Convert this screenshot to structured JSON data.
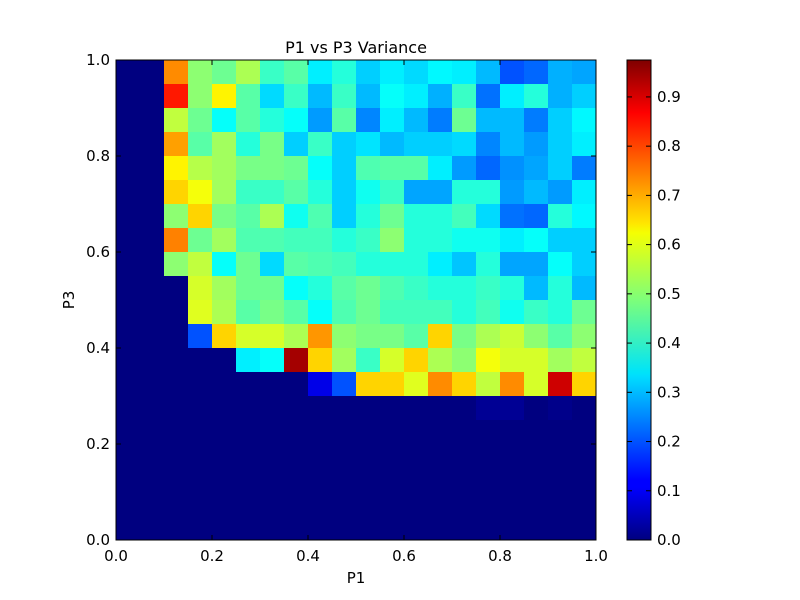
{
  "chart_data": {
    "type": "heatmap",
    "title": "P1 vs P3 Variance",
    "xlabel": "P1",
    "ylabel": "P3",
    "xlim": [
      0.0,
      1.0
    ],
    "ylim": [
      0.0,
      1.0
    ],
    "x_ticks": [
      "0.0",
      "0.2",
      "0.4",
      "0.6",
      "0.8",
      "1.0"
    ],
    "y_ticks": [
      "0.0",
      "0.2",
      "0.4",
      "0.6",
      "0.8",
      "1.0"
    ],
    "colorbar": {
      "min": 0.0,
      "max": 0.975,
      "colormap": "jet",
      "ticks": [
        "0.0",
        "0.1",
        "0.2",
        "0.3",
        "0.4",
        "0.5",
        "0.6",
        "0.7",
        "0.8",
        "0.9"
      ]
    },
    "grid_note": "20 columns x 20 rows; row 0 is the top (P3 near 1.0), column 0 is the left (P1 near 0.0)",
    "values": [
      [
        0.0,
        0.0,
        0.72,
        0.5,
        0.47,
        0.53,
        0.42,
        0.45,
        0.35,
        0.4,
        0.32,
        0.35,
        0.33,
        0.36,
        0.35,
        0.3,
        0.2,
        0.22,
        0.29,
        0.28
      ],
      [
        0.0,
        0.0,
        0.83,
        0.5,
        0.62,
        0.45,
        0.33,
        0.42,
        0.3,
        0.42,
        0.3,
        0.37,
        0.35,
        0.29,
        0.42,
        0.23,
        0.35,
        0.4,
        0.29,
        0.32
      ],
      [
        0.0,
        0.0,
        0.55,
        0.47,
        0.37,
        0.45,
        0.4,
        0.37,
        0.27,
        0.45,
        0.25,
        0.35,
        0.3,
        0.24,
        0.47,
        0.3,
        0.3,
        0.24,
        0.32,
        0.36
      ],
      [
        0.0,
        0.0,
        0.7,
        0.45,
        0.52,
        0.4,
        0.48,
        0.32,
        0.42,
        0.32,
        0.34,
        0.3,
        0.32,
        0.32,
        0.33,
        0.25,
        0.3,
        0.27,
        0.32,
        0.35
      ],
      [
        0.0,
        0.0,
        0.62,
        0.54,
        0.52,
        0.48,
        0.48,
        0.47,
        0.37,
        0.32,
        0.44,
        0.45,
        0.45,
        0.35,
        0.27,
        0.22,
        0.26,
        0.28,
        0.32,
        0.24
      ],
      [
        0.0,
        0.0,
        0.65,
        0.6,
        0.52,
        0.42,
        0.42,
        0.45,
        0.4,
        0.32,
        0.38,
        0.42,
        0.28,
        0.28,
        0.4,
        0.4,
        0.27,
        0.3,
        0.27,
        0.35
      ],
      [
        0.0,
        0.0,
        0.5,
        0.65,
        0.48,
        0.45,
        0.53,
        0.38,
        0.44,
        0.32,
        0.4,
        0.47,
        0.4,
        0.4,
        0.43,
        0.33,
        0.23,
        0.22,
        0.4,
        0.36
      ],
      [
        0.0,
        0.0,
        0.73,
        0.47,
        0.52,
        0.44,
        0.44,
        0.43,
        0.43,
        0.4,
        0.42,
        0.5,
        0.4,
        0.4,
        0.38,
        0.38,
        0.35,
        0.37,
        0.32,
        0.32
      ],
      [
        0.0,
        0.0,
        0.5,
        0.55,
        0.37,
        0.47,
        0.33,
        0.45,
        0.44,
        0.43,
        0.4,
        0.4,
        0.4,
        0.35,
        0.31,
        0.4,
        0.28,
        0.28,
        0.37,
        0.32
      ],
      [
        0.0,
        0.0,
        0.0,
        0.57,
        0.52,
        0.47,
        0.47,
        0.37,
        0.4,
        0.45,
        0.47,
        0.44,
        0.42,
        0.4,
        0.4,
        0.42,
        0.4,
        0.3,
        0.4,
        0.3
      ],
      [
        0.0,
        0.0,
        0.0,
        0.58,
        0.53,
        0.45,
        0.48,
        0.45,
        0.37,
        0.44,
        0.47,
        0.43,
        0.43,
        0.43,
        0.4,
        0.43,
        0.38,
        0.42,
        0.4,
        0.47
      ],
      [
        0.0,
        0.0,
        0.0,
        0.2,
        0.65,
        0.57,
        0.57,
        0.53,
        0.71,
        0.5,
        0.48,
        0.48,
        0.45,
        0.65,
        0.48,
        0.53,
        0.56,
        0.5,
        0.45,
        0.5
      ],
      [
        0.0,
        0.0,
        0.0,
        0.0,
        0.0,
        0.35,
        0.37,
        0.94,
        0.65,
        0.52,
        0.42,
        0.57,
        0.65,
        0.53,
        0.5,
        0.6,
        0.57,
        0.57,
        0.52,
        0.55
      ],
      [
        0.0,
        0.0,
        0.0,
        0.0,
        0.0,
        0.0,
        0.0,
        0.0,
        0.1,
        0.2,
        0.65,
        0.65,
        0.58,
        0.72,
        0.65,
        0.55,
        0.72,
        0.57,
        0.9,
        0.65
      ],
      [
        0.0,
        0.0,
        0.0,
        0.0,
        0.0,
        0.0,
        0.0,
        0.0,
        0.0,
        0.0,
        0.0,
        0.0,
        0.0,
        0.0,
        0.0,
        0.02,
        0.02,
        0.0,
        0.01,
        0.0
      ],
      [
        0.0,
        0.0,
        0.0,
        0.0,
        0.0,
        0.0,
        0.0,
        0.0,
        0.0,
        0.0,
        0.0,
        0.0,
        0.0,
        0.0,
        0.0,
        0.0,
        0.0,
        0.0,
        0.0,
        0.0
      ],
      [
        0.0,
        0.0,
        0.0,
        0.0,
        0.0,
        0.0,
        0.0,
        0.0,
        0.0,
        0.0,
        0.0,
        0.0,
        0.0,
        0.0,
        0.0,
        0.0,
        0.0,
        0.0,
        0.0,
        0.0
      ],
      [
        0.0,
        0.0,
        0.0,
        0.0,
        0.0,
        0.0,
        0.0,
        0.0,
        0.0,
        0.0,
        0.0,
        0.0,
        0.0,
        0.0,
        0.0,
        0.0,
        0.0,
        0.0,
        0.0,
        0.0
      ],
      [
        0.0,
        0.0,
        0.0,
        0.0,
        0.0,
        0.0,
        0.0,
        0.0,
        0.0,
        0.0,
        0.0,
        0.0,
        0.0,
        0.0,
        0.0,
        0.0,
        0.0,
        0.0,
        0.0,
        0.0
      ],
      [
        0.0,
        0.0,
        0.0,
        0.0,
        0.0,
        0.0,
        0.0,
        0.0,
        0.0,
        0.0,
        0.0,
        0.0,
        0.0,
        0.0,
        0.0,
        0.0,
        0.0,
        0.0,
        0.0,
        0.0
      ]
    ]
  }
}
